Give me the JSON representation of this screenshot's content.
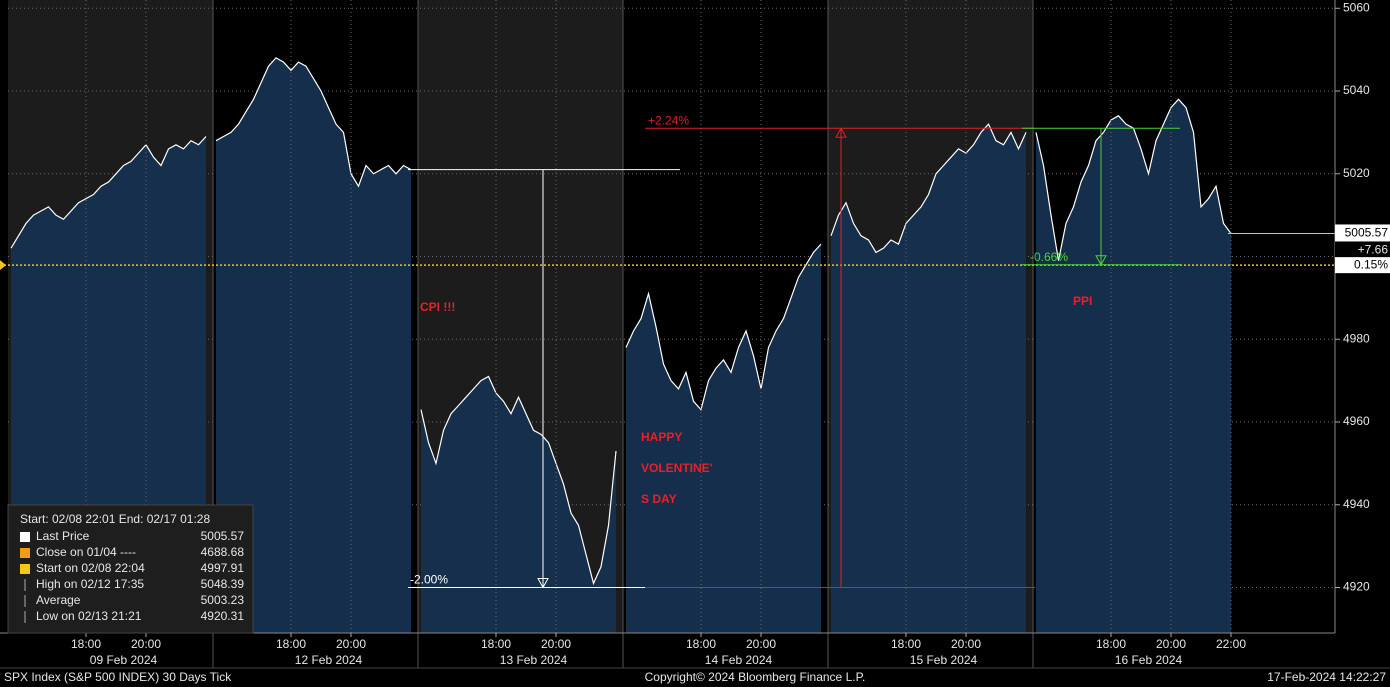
{
  "chart_data": {
    "type": "line",
    "x": [
      15.5,
      15.75,
      16,
      16.25,
      16.5,
      16.75,
      17,
      17.25,
      17.5,
      17.75,
      18,
      18.25,
      18.5,
      18.75,
      19,
      19.25,
      19.5,
      19.75,
      20,
      20.25,
      20.5,
      20.75,
      21,
      21.25,
      21.5,
      21.75,
      22
    ],
    "xlim": [
      15.5,
      22
    ],
    "sessions": [
      {
        "date": "09 Feb 2024",
        "xticks": [
          {
            "value": 18,
            "label": "18:00"
          },
          {
            "value": 20,
            "label": "20:00"
          }
        ],
        "values": [
          5002,
          5005,
          5008,
          5010,
          5011,
          5012,
          5010,
          5009,
          5011,
          5013,
          5014,
          5015,
          5017,
          5018,
          5020,
          5022,
          5023,
          5025,
          5027,
          5024,
          5022,
          5026,
          5027,
          5026,
          5028,
          5027,
          5029
        ]
      },
      {
        "date": "12 Feb 2024",
        "xticks": [
          {
            "value": 18,
            "label": "18:00"
          },
          {
            "value": 20,
            "label": "20:00"
          }
        ],
        "values": [
          5028,
          5029,
          5030,
          5032,
          5035,
          5038,
          5042,
          5046,
          5048,
          5047,
          5045,
          5047,
          5046,
          5043,
          5040,
          5036,
          5032,
          5030,
          5020,
          5017,
          5022,
          5020,
          5021,
          5022,
          5020,
          5022,
          5021
        ]
      },
      {
        "date": "13 Feb 2024",
        "xticks": [
          {
            "value": 18,
            "label": "18:00"
          },
          {
            "value": 20,
            "label": "20:00"
          }
        ],
        "values": [
          4963,
          4955,
          4950,
          4958,
          4962,
          4964,
          4966,
          4968,
          4970,
          4971,
          4967,
          4965,
          4962,
          4966,
          4962,
          4958,
          4957,
          4955,
          4950,
          4945,
          4938,
          4935,
          4928,
          4921,
          4925,
          4935,
          4953
        ]
      },
      {
        "date": "14 Feb 2024",
        "xticks": [
          {
            "value": 18,
            "label": "18:00"
          },
          {
            "value": 20,
            "label": "20:00"
          }
        ],
        "values": [
          4978,
          4982,
          4985,
          4991,
          4983,
          4974,
          4970,
          4968,
          4972,
          4965,
          4963,
          4970,
          4973,
          4975,
          4972,
          4978,
          4982,
          4976,
          4968,
          4978,
          4982,
          4985,
          4990,
          4995,
          4998,
          5001,
          5003
        ]
      },
      {
        "date": "15 Feb 2024",
        "xticks": [
          {
            "value": 18,
            "label": "18:00"
          },
          {
            "value": 20,
            "label": "20:00"
          }
        ],
        "values": [
          5005,
          5010,
          5013,
          5008,
          5005,
          5004,
          5001,
          5002,
          5004,
          5003,
          5008,
          5010,
          5012,
          5015,
          5020,
          5022,
          5024,
          5026,
          5025,
          5027,
          5030,
          5032,
          5028,
          5027,
          5030,
          5026,
          5030
        ]
      },
      {
        "date": "16 Feb 2024",
        "xticks": [
          {
            "value": 18,
            "label": "18:00"
          },
          {
            "value": 20,
            "label": "20:00"
          },
          {
            "value": 22,
            "label": "22:00"
          }
        ],
        "values": [
          5030,
          5022,
          5010,
          4999,
          5008,
          5012,
          5018,
          5022,
          5028,
          5030,
          5033,
          5034,
          5032,
          5031,
          5026,
          5020,
          5028,
          5032,
          5036,
          5038,
          5036,
          5030,
          5012,
          5014,
          5017,
          5008,
          5005.57
        ]
      }
    ],
    "line_color": "#ffffff",
    "area_color": "#16304f",
    "ylim": [
      4909,
      5062
    ],
    "yticks": [
      4920,
      4940,
      4960,
      4980,
      5000,
      5020,
      5040,
      5060
    ],
    "yticks_shown": [
      4920,
      4940,
      4960,
      4980,
      5020,
      5040,
      5060
    ],
    "grid": true,
    "reference_line": {
      "value": 4997.91,
      "color": "#f5c518"
    },
    "last_price_label": {
      "value": 5005.57,
      "change": "+7.66",
      "change_pct": "0.15%"
    },
    "measurements": [
      {
        "label": "-2.00%",
        "from": 5021,
        "to": 4920,
        "color": "#ffffff"
      },
      {
        "label": "+2.24%",
        "from": 4920,
        "to": 5031,
        "color": "#e02020"
      },
      {
        "label": "-0.66%",
        "from": 5031,
        "to": 4998,
        "color": "#4cd137"
      }
    ],
    "annotations": [
      {
        "text": "CPI !!!"
      },
      {
        "lines": [
          "HAPPY",
          "VOLENTINE'",
          "S DAY"
        ]
      },
      {
        "text": "PPI"
      }
    ],
    "legend_box": {
      "header": "Start: 02/08 22:01 End: 02/17 01:28",
      "items": [
        {
          "label": "Last Price",
          "value": 5005.57,
          "color": "#ffffff"
        },
        {
          "label": "Close on 01/04 ----",
          "value": 4688.68,
          "color": "#f39c12"
        },
        {
          "label": "Start on 02/08 22:04",
          "value": 4997.91,
          "color": "#f5c518"
        },
        {
          "label": "High on 02/12 17:35",
          "value": 5048.39,
          "color": null
        },
        {
          "label": "Average",
          "value": 5003.23,
          "color": null
        },
        {
          "label": "Low on 02/13 21:21",
          "value": 4920.31,
          "color": null
        }
      ]
    }
  },
  "footer": {
    "left": "SPX Index (S&P 500 INDEX) 30 Days  Tick",
    "center": "Copyright© 2024 Bloomberg Finance L.P.",
    "right": "17-Feb-2024 14:22:27"
  }
}
